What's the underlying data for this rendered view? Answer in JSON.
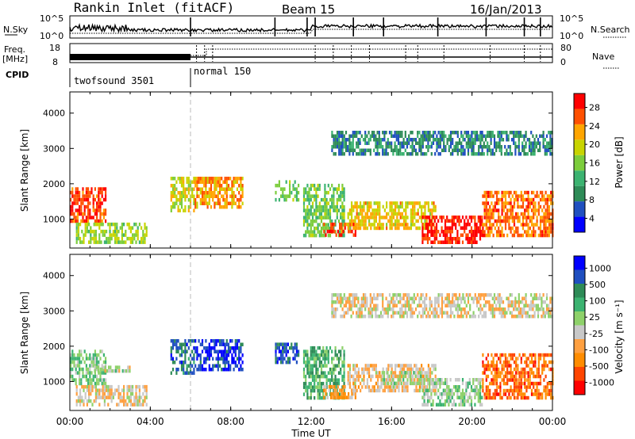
{
  "header": {
    "station": "Rankin Inlet (fitACF)",
    "beam": "Beam 15",
    "date": "16/Jan/2013"
  },
  "top_panels": {
    "nsky_label": "N.Sky",
    "nsky_ticks": [
      "10^5",
      "10^0"
    ],
    "nsearch_label": "N.Search",
    "nsearch_ticks": [
      "10^5",
      "10^0"
    ],
    "freq_label": "Freq.",
    "freq_unit": "[MHz]",
    "freq_ticks": [
      "18",
      "8"
    ],
    "nave_label": "Nave",
    "nave_ticks": [
      "80",
      "0"
    ],
    "cpid_label": "CPID",
    "cpid_segments": [
      {
        "label": "twofsound 3501",
        "start_hour": 0
      },
      {
        "label": "normal 150",
        "start_hour": 6
      }
    ]
  },
  "chart_data": [
    {
      "type": "heatmap",
      "title": "",
      "xlabel": "Time UT",
      "ylabel": "Slant Range [km]",
      "xlim_hours": [
        0,
        24
      ],
      "ylim_km": [
        180,
        4600
      ],
      "x_ticks": [
        "00:00",
        "04:00",
        "08:00",
        "12:00",
        "16:00",
        "20:00",
        "00:00"
      ],
      "y_ticks": [
        1000,
        2000,
        3000,
        4000
      ],
      "colorbar": {
        "label": "Power [dB]",
        "ticks": [
          "28",
          "24",
          "20",
          "16",
          "12",
          "8",
          "4"
        ],
        "range": [
          0,
          30
        ],
        "colors": [
          "#0000ff",
          "#2050c0",
          "#2e8b57",
          "#3cb371",
          "#7ccd3c",
          "#c8d400",
          "#ffa500",
          "#ff5000",
          "#ff0000"
        ]
      },
      "echo_regions": [
        {
          "t0": 0.0,
          "t1": 1.8,
          "r0": 900,
          "r1": 1900,
          "value": 26
        },
        {
          "t0": 0.3,
          "t1": 3.8,
          "r0": 350,
          "r1": 900,
          "value": 16
        },
        {
          "t0": 5.0,
          "t1": 6.2,
          "r0": 1200,
          "r1": 2200,
          "value": 18
        },
        {
          "t0": 6.2,
          "t1": 8.6,
          "r0": 1300,
          "r1": 2200,
          "value": 22
        },
        {
          "t0": 10.2,
          "t1": 11.4,
          "r0": 1500,
          "r1": 2100,
          "value": 14
        },
        {
          "t0": 11.6,
          "t1": 13.6,
          "r0": 500,
          "r1": 2000,
          "value": 14
        },
        {
          "t0": 12.6,
          "t1": 14.2,
          "r0": 500,
          "r1": 900,
          "value": 26
        },
        {
          "t0": 13.8,
          "t1": 18.2,
          "r0": 700,
          "r1": 1500,
          "value": 20
        },
        {
          "t0": 17.5,
          "t1": 20.5,
          "r0": 350,
          "r1": 1100,
          "value": 28
        },
        {
          "t0": 20.5,
          "t1": 24.0,
          "r0": 500,
          "r1": 1800,
          "value": 24
        },
        {
          "t0": 13.0,
          "t1": 24.0,
          "r0": 2800,
          "r1": 3500,
          "value": 8
        }
      ]
    },
    {
      "type": "heatmap",
      "title": "",
      "xlabel": "Time UT",
      "ylabel": "Slant Range [km]",
      "xlim_hours": [
        0,
        24
      ],
      "ylim_km": [
        180,
        4600
      ],
      "x_ticks": [
        "00:00",
        "04:00",
        "08:00",
        "12:00",
        "16:00",
        "20:00",
        "00:00"
      ],
      "y_ticks": [
        1000,
        2000,
        3000,
        4000
      ],
      "colorbar": {
        "label": "Velocity [m s⁻¹]",
        "ticks": [
          "1000",
          "500",
          "100",
          "25",
          "-25",
          "-100",
          "-500",
          "-1000"
        ],
        "range": [
          -1000,
          1000
        ],
        "colors": [
          "#ff0000",
          "#ff4500",
          "#ff8c00",
          "#ffa040",
          "#c8c8c8",
          "#8ed16a",
          "#3cb371",
          "#2e8b57",
          "#1f4fc0",
          "#0000ff"
        ]
      },
      "echo_regions": [
        {
          "t0": 0.0,
          "t1": 1.8,
          "r0": 900,
          "r1": 1900,
          "value": 150
        },
        {
          "t0": 0.3,
          "t1": 3.8,
          "r0": 350,
          "r1": 900,
          "value": -150
        },
        {
          "t0": 1.2,
          "t1": 3.0,
          "r0": 1250,
          "r1": 1450,
          "value": 0
        },
        {
          "t0": 5.0,
          "t1": 6.2,
          "r0": 1200,
          "r1": 2200,
          "value": 600
        },
        {
          "t0": 6.2,
          "t1": 8.6,
          "r0": 1300,
          "r1": 2200,
          "value": 800
        },
        {
          "t0": 10.2,
          "t1": 11.4,
          "r0": 1500,
          "r1": 2100,
          "value": 700
        },
        {
          "t0": 11.6,
          "t1": 13.6,
          "r0": 500,
          "r1": 2000,
          "value": 300
        },
        {
          "t0": 12.6,
          "t1": 14.2,
          "r0": 500,
          "r1": 900,
          "value": -300
        },
        {
          "t0": 13.8,
          "t1": 18.2,
          "r0": 700,
          "r1": 1500,
          "value": -200
        },
        {
          "t0": 15.5,
          "t1": 17.5,
          "r0": 900,
          "r1": 1300,
          "value": 0
        },
        {
          "t0": 17.5,
          "t1": 20.5,
          "r0": 350,
          "r1": 1100,
          "value": 80
        },
        {
          "t0": 20.5,
          "t1": 24.0,
          "r0": 500,
          "r1": 1800,
          "value": -600
        },
        {
          "t0": 13.0,
          "t1": 24.0,
          "r0": 2800,
          "r1": 3500,
          "value": -120
        }
      ]
    }
  ]
}
